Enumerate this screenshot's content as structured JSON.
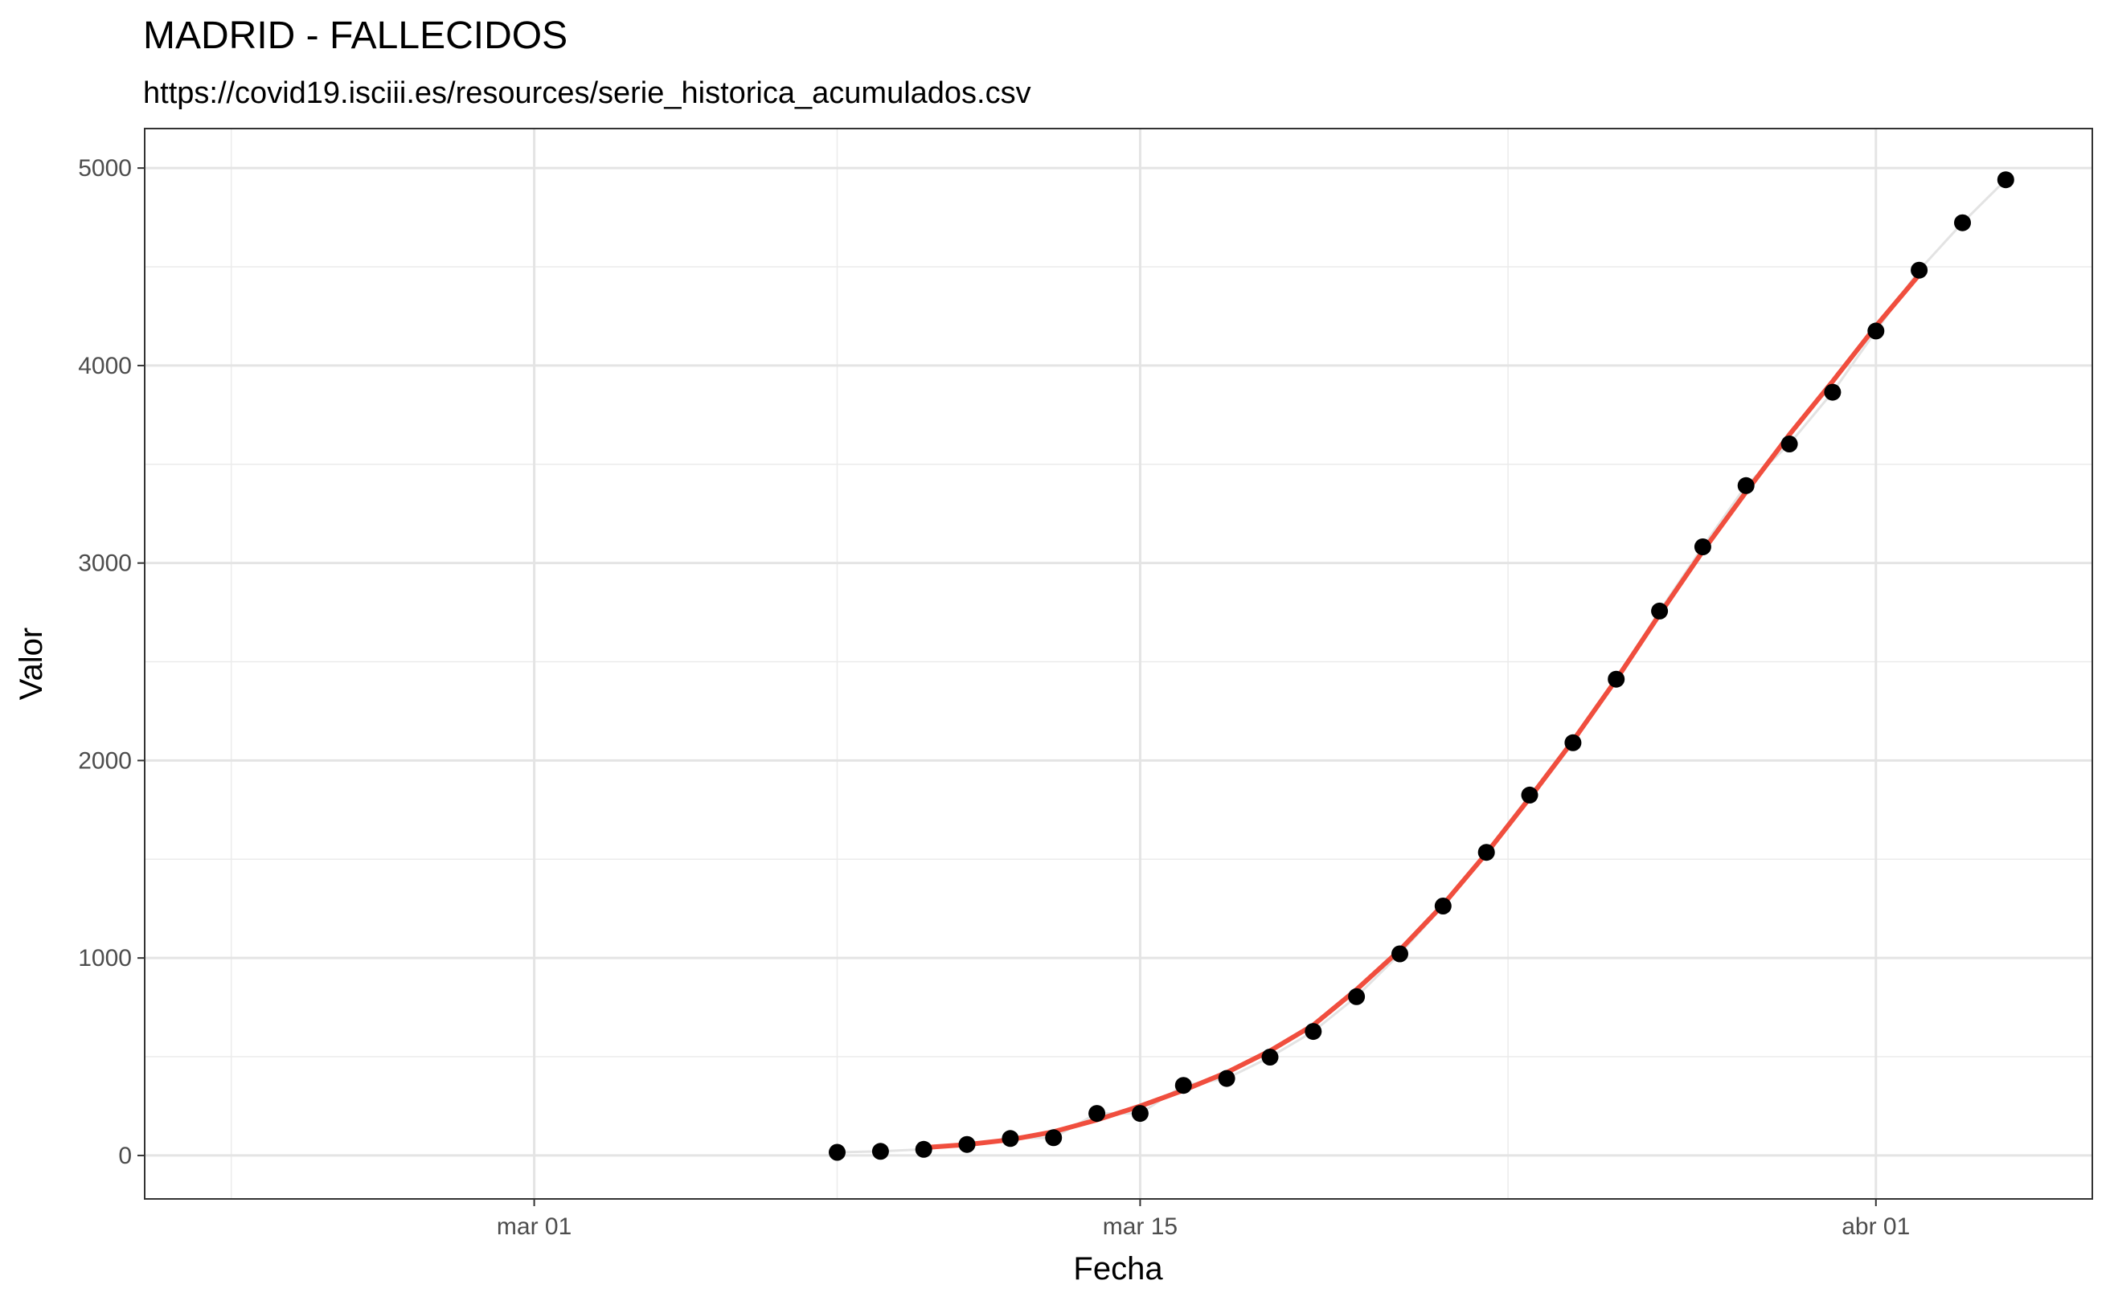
{
  "chart_data": {
    "type": "scatter",
    "title": "MADRID - FALLECIDOS",
    "subtitle": "https://covid19.isciii.es/resources/serie_historica_acumulados.csv",
    "xlabel": "Fecha",
    "ylabel": "Valor",
    "x_axis_type": "date",
    "xlim": [
      "2020-02-21",
      "2020-04-06"
    ],
    "ylim": [
      -220,
      5200
    ],
    "x_ticks": [
      {
        "date": "2020-03-01",
        "label": "mar 01"
      },
      {
        "date": "2020-03-15",
        "label": "mar 15"
      },
      {
        "date": "2020-04-01",
        "label": "abr 01"
      }
    ],
    "y_ticks": [
      {
        "value": 0,
        "label": "0"
      },
      {
        "value": 1000,
        "label": "1000"
      },
      {
        "value": 2000,
        "label": "2000"
      },
      {
        "value": 3000,
        "label": "3000"
      },
      {
        "value": 4000,
        "label": "4000"
      },
      {
        "value": 5000,
        "label": "5000"
      }
    ],
    "grid": true,
    "series": [
      {
        "kind": "points",
        "color": "#000000",
        "x": [
          "2020-03-08",
          "2020-03-09",
          "2020-03-10",
          "2020-03-11",
          "2020-03-12",
          "2020-03-13",
          "2020-03-14",
          "2020-03-15",
          "2020-03-16",
          "2020-03-17",
          "2020-03-18",
          "2020-03-19",
          "2020-03-20",
          "2020-03-21",
          "2020-03-22",
          "2020-03-23",
          "2020-03-24",
          "2020-03-25",
          "2020-03-26",
          "2020-03-27",
          "2020-03-28",
          "2020-03-29",
          "2020-03-30",
          "2020-03-31",
          "2020-04-01",
          "2020-04-02",
          "2020-04-03",
          "2020-04-04"
        ],
        "y": [
          16,
          21,
          31,
          56,
          86,
          90,
          213,
          213,
          355,
          390,
          498,
          628,
          804,
          1021,
          1263,
          1535,
          1825,
          2090,
          2412,
          2757,
          3082,
          3392,
          3603,
          3865,
          4175,
          4483,
          4723,
          4941
        ]
      },
      {
        "kind": "connecting-line",
        "color": "#e3e3e3",
        "x": [
          "2020-03-08",
          "2020-03-09",
          "2020-03-10",
          "2020-03-11",
          "2020-03-12",
          "2020-03-13",
          "2020-03-14",
          "2020-03-15",
          "2020-03-16",
          "2020-03-17",
          "2020-03-18",
          "2020-03-19",
          "2020-03-20",
          "2020-03-21",
          "2020-03-22",
          "2020-03-23",
          "2020-03-24",
          "2020-03-25",
          "2020-03-26",
          "2020-03-27",
          "2020-03-28",
          "2020-03-29",
          "2020-03-30",
          "2020-03-31",
          "2020-04-01",
          "2020-04-02",
          "2020-04-03",
          "2020-04-04"
        ],
        "y": [
          16,
          21,
          31,
          56,
          86,
          90,
          213,
          213,
          355,
          390,
          498,
          628,
          804,
          1021,
          1263,
          1535,
          1825,
          2090,
          2412,
          2757,
          3082,
          3392,
          3603,
          3865,
          4175,
          4483,
          4723,
          4941
        ]
      },
      {
        "kind": "smoothed-line",
        "color": "#f04e3e",
        "x": [
          "2020-03-10",
          "2020-03-11",
          "2020-03-12",
          "2020-03-13",
          "2020-03-14",
          "2020-03-15",
          "2020-03-16",
          "2020-03-17",
          "2020-03-18",
          "2020-03-19",
          "2020-03-20",
          "2020-03-21",
          "2020-03-22",
          "2020-03-23",
          "2020-03-24",
          "2020-03-25",
          "2020-03-26",
          "2020-03-27",
          "2020-03-28",
          "2020-03-29",
          "2020-03-30",
          "2020-03-31",
          "2020-04-01",
          "2020-04-02"
        ],
        "y": [
          40,
          55,
          80,
          120,
          180,
          250,
          330,
          420,
          530,
          660,
          840,
          1040,
          1270,
          1530,
          1810,
          2100,
          2410,
          2740,
          3060,
          3360,
          3650,
          3920,
          4200,
          4460
        ]
      }
    ]
  }
}
